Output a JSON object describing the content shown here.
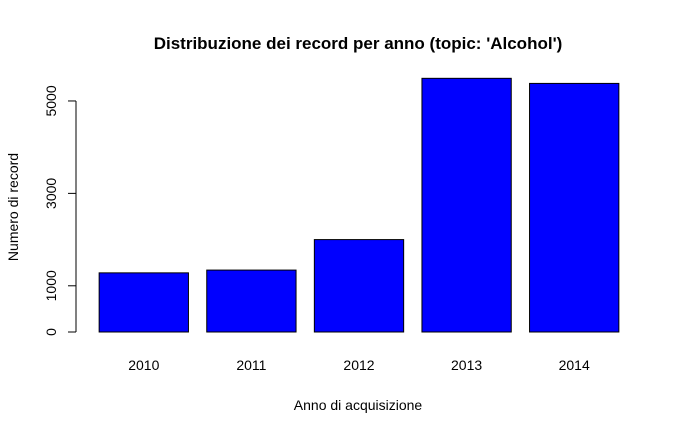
{
  "chart_data": {
    "type": "bar",
    "title": "Distribuzione dei record per anno (topic: 'Alcohol')",
    "xlabel": "Anno di acquisizione",
    "ylabel": "Numero di record",
    "categories": [
      "2010",
      "2011",
      "2012",
      "2013",
      "2014"
    ],
    "values": [
      1280,
      1340,
      2000,
      5490,
      5380
    ],
    "ylim": [
      0,
      5800
    ],
    "yticks": [
      0,
      1000,
      3000,
      5000
    ],
    "ytick_labels": [
      "0",
      "1000",
      "3000",
      "5000"
    ],
    "grid": false,
    "bar_color": "#0000ff",
    "bar_border_color": "#000000"
  }
}
